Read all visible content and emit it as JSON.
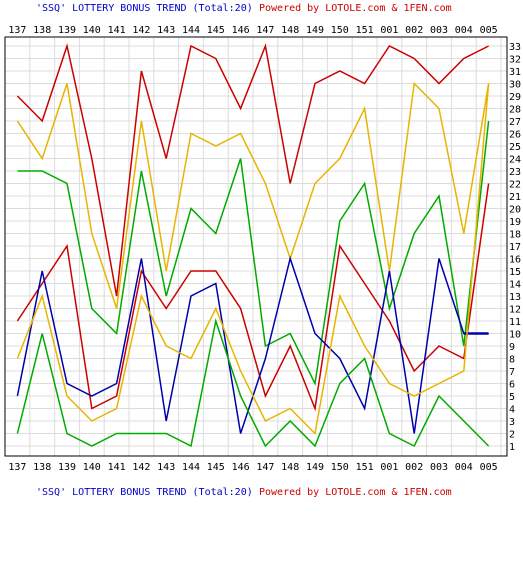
{
  "header": {
    "title_text": "'SSQ' LOTTERY BONUS TREND (Total:20)",
    "powered_text": "Powered by LOTOLE.com & 1FEN.com"
  },
  "footer": {
    "title_text": "'SSQ' LOTTERY BONUS TREND (Total:20)",
    "powered_text": "Powered by LOTOLE.com & 1FEN.com"
  },
  "chart_data": {
    "type": "line",
    "title": "'SSQ' LOTTERY BONUS TREND (Total:20)",
    "xlabel": "",
    "ylabel": "",
    "x": [
      "137",
      "138",
      "139",
      "140",
      "141",
      "142",
      "143",
      "144",
      "145",
      "146",
      "147",
      "148",
      "149",
      "150",
      "151",
      "001",
      "002",
      "003",
      "004",
      "005"
    ],
    "ylim": [
      1,
      33
    ],
    "y_ticks": [
      1,
      2,
      3,
      4,
      5,
      6,
      7,
      8,
      9,
      10,
      11,
      12,
      13,
      14,
      15,
      16,
      17,
      18,
      19,
      20,
      21,
      22,
      23,
      24,
      25,
      26,
      27,
      28,
      29,
      30,
      31,
      32,
      33
    ],
    "grid": true,
    "series": [
      {
        "color": "#cc0000",
        "values": [
          29,
          27,
          33,
          24,
          13,
          31,
          24,
          33,
          32,
          28,
          33,
          22,
          30,
          31,
          30,
          33,
          32,
          30,
          32,
          33
        ]
      },
      {
        "color": "#e8b400",
        "values": [
          27,
          24,
          30,
          18,
          12,
          27,
          15,
          26,
          25,
          26,
          22,
          16,
          22,
          24,
          28,
          15,
          30,
          28,
          18,
          30
        ]
      },
      {
        "color": "#00aa00",
        "values": [
          23,
          23,
          22,
          12,
          10,
          23,
          13,
          20,
          18,
          24,
          9,
          10,
          6,
          19,
          22,
          12,
          18,
          21,
          9,
          27
        ]
      },
      {
        "color": "#cc0000",
        "values": [
          11,
          14,
          17,
          4,
          5,
          15,
          12,
          15,
          15,
          12,
          5,
          9,
          4,
          17,
          14,
          11,
          7,
          9,
          8,
          22
        ]
      },
      {
        "color": "#0000aa",
        "values": [
          5,
          15,
          6,
          5,
          6,
          16,
          3,
          13,
          14,
          2,
          8,
          16,
          10,
          8,
          4,
          15,
          2,
          16,
          10,
          10
        ]
      },
      {
        "color": "#e8b400",
        "values": [
          8,
          13,
          5,
          3,
          4,
          13,
          9,
          8,
          12,
          7,
          3,
          4,
          2,
          13,
          9,
          6,
          5,
          6,
          7,
          30
        ]
      },
      {
        "color": "#00aa00",
        "values": [
          2,
          10,
          2,
          1,
          2,
          2,
          2,
          1,
          11,
          5,
          1,
          3,
          1,
          6,
          8,
          2,
          1,
          5,
          3,
          1
        ]
      }
    ]
  }
}
